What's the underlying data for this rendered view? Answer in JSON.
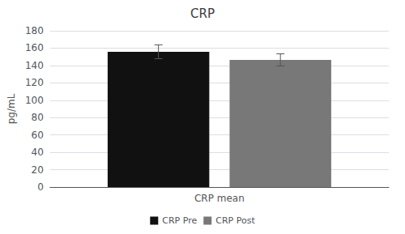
{
  "chart_data": {
    "type": "bar",
    "title": "CRP",
    "categories": [
      "CRP mean"
    ],
    "series": [
      {
        "name": "CRP Pre",
        "color": "#111111",
        "values": [
          155.8
        ],
        "errors": [
          8.0
        ]
      },
      {
        "name": "CRP Post",
        "color": "#787878",
        "values": [
          146.5
        ],
        "errors": [
          7.0
        ]
      }
    ],
    "ylabel": "pg/mL",
    "ylim": [
      0,
      180
    ],
    "yticks": [
      0,
      20,
      40,
      60,
      80,
      100,
      120,
      140,
      160,
      180
    ],
    "grid": true,
    "legend": "bottom"
  }
}
